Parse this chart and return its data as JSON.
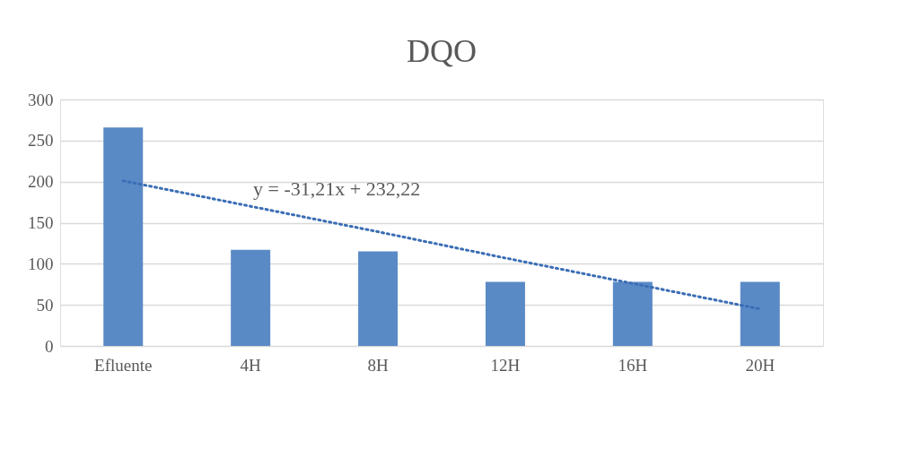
{
  "chart_data": {
    "type": "bar",
    "title": "DQO",
    "categories": [
      "Efluente",
      "4H",
      "8H",
      "12H",
      "16H",
      "20H"
    ],
    "series": [
      {
        "color": "#5a8ac6",
        "values": [
          266,
          117,
          115,
          78,
          78,
          78
        ]
      },
      {
        "type": "line",
        "color": "#3a6db5",
        "line_style": "dotted",
        "values": [
          201,
          170,
          139,
          107,
          76,
          45
        ]
      }
    ],
    "ylim": [
      0,
      300
    ],
    "yticks": [
      0,
      50,
      100,
      150,
      200,
      250,
      300
    ],
    "grid": "y",
    "annotations": [
      "y = -31,21x + 232,22"
    ]
  }
}
